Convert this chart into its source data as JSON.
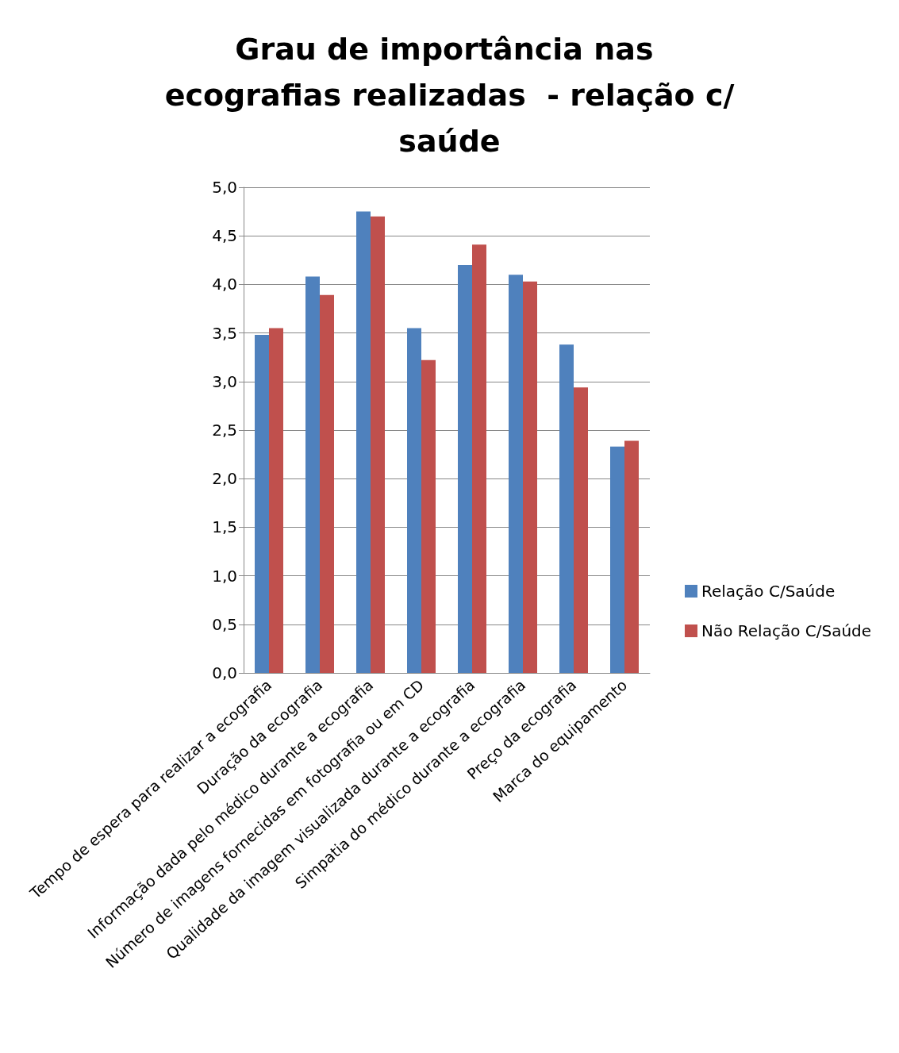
{
  "chart_data": {
    "type": "bar",
    "title": "Grau de importância nas ecografias realizadas  - relação c/saúde",
    "categories": [
      "Tempo de espera para realizar a ecografia",
      "Duração da ecografia",
      "Informação dada pelo médico durante a ecografia",
      "Número de imagens fornecidas em fotografia ou em CD",
      "Qualidade da imagem visualizada durante a ecografia",
      "Simpatia do médico durante a ecografia",
      "Preço da ecografia",
      "Marca do equipamento"
    ],
    "series": [
      {
        "name": "Relação C/Saúde",
        "color": "#4f81bd",
        "values": [
          3.48,
          4.08,
          4.75,
          3.55,
          4.2,
          4.1,
          3.38,
          2.33
        ]
      },
      {
        "name": "Não Relação C/Saúde",
        "color": "#c0504d",
        "values": [
          3.55,
          3.89,
          4.7,
          3.22,
          4.41,
          4.03,
          2.94,
          2.39
        ]
      }
    ],
    "ylim": [
      0,
      5
    ],
    "yticks": [
      {
        "value": 0,
        "label": "0,0"
      },
      {
        "value": 0.5,
        "label": "0,5"
      },
      {
        "value": 1,
        "label": "1,0"
      },
      {
        "value": 1.5,
        "label": "1,5"
      },
      {
        "value": 2,
        "label": "2,0"
      },
      {
        "value": 2.5,
        "label": "2,5"
      },
      {
        "value": 3,
        "label": "3,0"
      },
      {
        "value": 3.5,
        "label": "3,5"
      },
      {
        "value": 4,
        "label": "4,0"
      },
      {
        "value": 4.5,
        "label": "4,5"
      },
      {
        "value": 5,
        "label": "5,0"
      }
    ],
    "grid": "y",
    "legend": "right"
  }
}
